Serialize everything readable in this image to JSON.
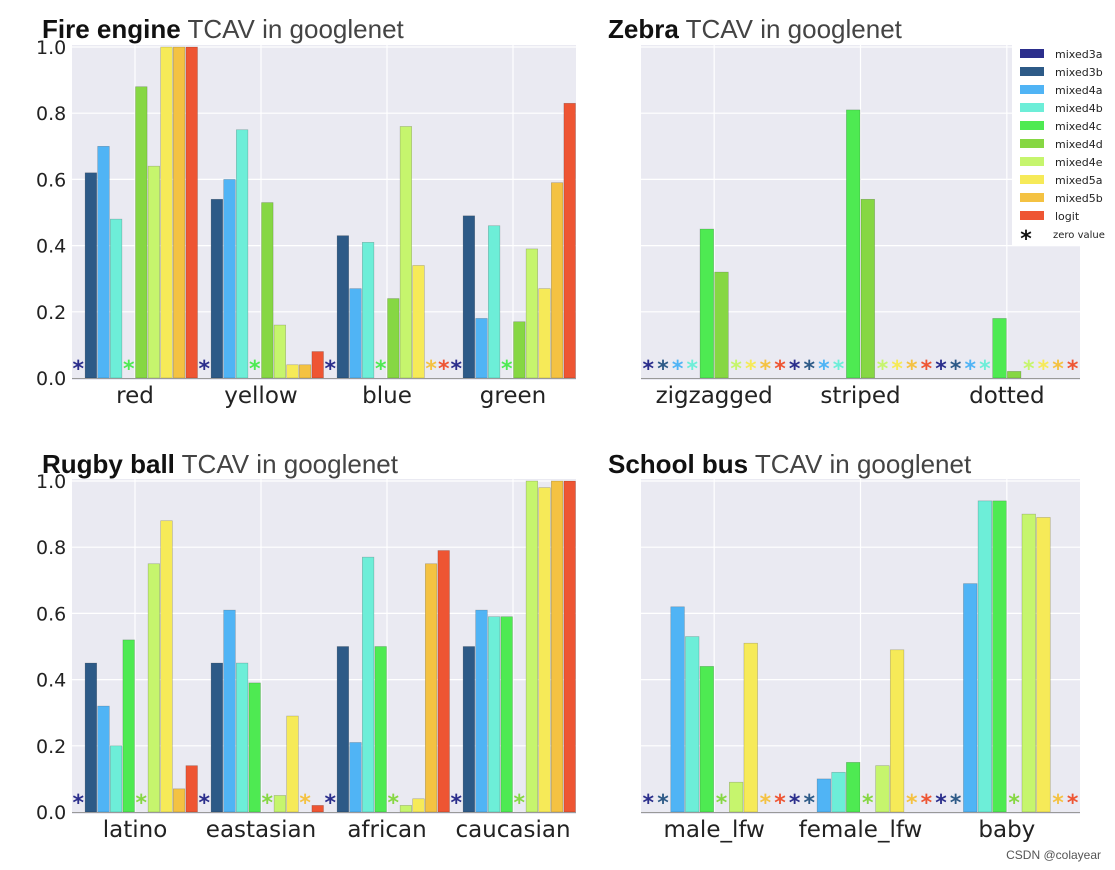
{
  "colors": {
    "mixed3a": "#2b2e8c",
    "mixed3b": "#2d5a87",
    "mixed4a": "#50b4f5",
    "mixed4b": "#6deed8",
    "mixed4c": "#4eea52",
    "mixed4d": "#86d743",
    "mixed4e": "#c6f56d",
    "mixed5a": "#f6ea58",
    "mixed5b": "#f4c242",
    "logit": "#ee5533",
    "panel_bg": "#eaeaf2",
    "grid": "#ffffff"
  },
  "legend": {
    "items": [
      "mixed3a",
      "mixed3b",
      "mixed4a",
      "mixed4b",
      "mixed4c",
      "mixed4d",
      "mixed4e",
      "mixed5a",
      "mixed5b",
      "logit"
    ],
    "zero_symbol": "*",
    "zero_label": "zero value"
  },
  "chart_data": [
    {
      "type": "bar",
      "title_bold": "Fire engine",
      "title_rest": " TCAV in googlenet",
      "ylim": [
        0,
        1.0
      ],
      "yticks": [
        "0.0",
        "0.2",
        "0.4",
        "0.6",
        "0.8",
        "1.0"
      ],
      "categories": [
        "red",
        "yellow",
        "blue",
        "green"
      ],
      "values": [
        [
          0,
          0.62,
          0.7,
          0.48,
          0,
          0.88,
          0.64,
          1.0,
          1.0,
          1.0
        ],
        [
          0,
          0.54,
          0.6,
          0.75,
          0,
          0.53,
          0.16,
          0.04,
          0.04,
          0.08
        ],
        [
          0,
          0.43,
          0.27,
          0.41,
          0,
          0.24,
          0.76,
          0.34,
          0,
          0
        ],
        [
          0,
          0.49,
          0.18,
          0.46,
          0,
          0.17,
          0.39,
          0.27,
          0.59,
          0.83
        ]
      ]
    },
    {
      "type": "bar",
      "title_bold": "Zebra",
      "title_rest": " TCAV in googlenet",
      "ylim": [
        0,
        1.0
      ],
      "yticks": [],
      "categories": [
        "zigzagged",
        "striped",
        "dotted"
      ],
      "values": [
        [
          0,
          0,
          0,
          0,
          0.45,
          0.32,
          0,
          0,
          0,
          0
        ],
        [
          0,
          0,
          0,
          0,
          0.81,
          0.54,
          0,
          0,
          0,
          0
        ],
        [
          0,
          0,
          0,
          0,
          0.18,
          0.02,
          0,
          0,
          0,
          0
        ]
      ]
    },
    {
      "type": "bar",
      "title_bold": "Rugby ball",
      "title_rest": " TCAV in googlenet",
      "ylim": [
        0,
        1.0
      ],
      "yticks": [
        "0.0",
        "0.2",
        "0.4",
        "0.6",
        "0.8",
        "1.0"
      ],
      "categories": [
        "latino",
        "eastasian",
        "african",
        "caucasian"
      ],
      "values": [
        [
          0,
          0.45,
          0.32,
          0.2,
          0.52,
          0,
          0.75,
          0.88,
          0.07,
          0.14
        ],
        [
          0,
          0.45,
          0.61,
          0.45,
          0.39,
          0,
          0.05,
          0.29,
          0,
          0.02
        ],
        [
          0,
          0.5,
          0.21,
          0.77,
          0.5,
          0,
          0.02,
          0.04,
          0.75,
          0.79
        ],
        [
          0,
          0.5,
          0.61,
          0.59,
          0.59,
          0,
          1.0,
          0.98,
          1.0,
          1.0
        ]
      ]
    },
    {
      "type": "bar",
      "title_bold": "School bus",
      "title_rest": " TCAV in googlenet",
      "ylim": [
        0,
        1.0
      ],
      "yticks": [],
      "categories": [
        "male_lfw",
        "female_lfw",
        "baby"
      ],
      "values": [
        [
          0,
          0,
          0.62,
          0.53,
          0.44,
          0,
          0.09,
          0.51,
          0,
          0
        ],
        [
          0,
          0,
          0.1,
          0.12,
          0.15,
          0,
          0.14,
          0.49,
          0,
          0
        ],
        [
          0,
          0,
          0.69,
          0.94,
          0.94,
          0,
          0.9,
          0.89,
          0,
          0
        ]
      ]
    }
  ],
  "watermark": "CSDN @colayear"
}
